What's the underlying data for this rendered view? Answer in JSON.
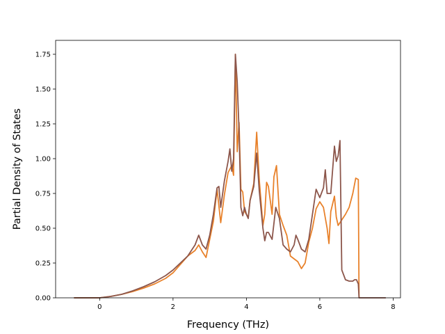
{
  "chart_data": {
    "type": "line",
    "title": "",
    "xlabel": "Frequency (THz)",
    "ylabel": "Partial Density of States",
    "xlim": [
      -1.2,
      8.2
    ],
    "ylim": [
      0,
      1.85
    ],
    "xticks": [
      0,
      2,
      4,
      6,
      8
    ],
    "yticks": [
      0.0,
      0.25,
      0.5,
      0.75,
      1.0,
      1.25,
      1.5,
      1.75
    ],
    "ytick_labels": [
      "0.00",
      "0.25",
      "0.50",
      "0.75",
      "1.00",
      "1.25",
      "1.50",
      "1.75"
    ],
    "grid": false,
    "legend": "none",
    "series": [
      {
        "color": "#e8812a",
        "points": [
          [
            -0.7,
            0
          ],
          [
            0,
            0
          ],
          [
            0.3,
            0.01
          ],
          [
            0.6,
            0.025
          ],
          [
            0.9,
            0.045
          ],
          [
            1.2,
            0.07
          ],
          [
            1.5,
            0.1
          ],
          [
            1.8,
            0.14
          ],
          [
            2.0,
            0.18
          ],
          [
            2.2,
            0.24
          ],
          [
            2.4,
            0.3
          ],
          [
            2.6,
            0.34
          ],
          [
            2.7,
            0.38
          ],
          [
            2.8,
            0.33
          ],
          [
            2.9,
            0.29
          ],
          [
            3.0,
            0.42
          ],
          [
            3.1,
            0.55
          ],
          [
            3.2,
            0.78
          ],
          [
            3.3,
            0.54
          ],
          [
            3.4,
            0.74
          ],
          [
            3.5,
            0.9
          ],
          [
            3.6,
            0.95
          ],
          [
            3.65,
            0.88
          ],
          [
            3.7,
            1.75
          ],
          [
            3.75,
            1.05
          ],
          [
            3.8,
            1.26
          ],
          [
            3.85,
            0.78
          ],
          [
            3.9,
            0.76
          ],
          [
            3.95,
            0.62
          ],
          [
            4.0,
            0.6
          ],
          [
            4.05,
            0.58
          ],
          [
            4.1,
            0.7
          ],
          [
            4.2,
            0.82
          ],
          [
            4.28,
            1.19
          ],
          [
            4.35,
            0.85
          ],
          [
            4.45,
            0.52
          ],
          [
            4.5,
            0.6
          ],
          [
            4.55,
            0.83
          ],
          [
            4.6,
            0.8
          ],
          [
            4.7,
            0.6
          ],
          [
            4.75,
            0.87
          ],
          [
            4.82,
            0.95
          ],
          [
            4.9,
            0.6
          ],
          [
            5.0,
            0.52
          ],
          [
            5.1,
            0.45
          ],
          [
            5.2,
            0.3
          ],
          [
            5.3,
            0.28
          ],
          [
            5.4,
            0.26
          ],
          [
            5.5,
            0.21
          ],
          [
            5.6,
            0.25
          ],
          [
            5.7,
            0.4
          ],
          [
            5.8,
            0.5
          ],
          [
            5.9,
            0.64
          ],
          [
            6.0,
            0.69
          ],
          [
            6.1,
            0.65
          ],
          [
            6.2,
            0.5
          ],
          [
            6.25,
            0.39
          ],
          [
            6.3,
            0.62
          ],
          [
            6.4,
            0.73
          ],
          [
            6.45,
            0.58
          ],
          [
            6.5,
            0.52
          ],
          [
            6.6,
            0.56
          ],
          [
            6.7,
            0.6
          ],
          [
            6.8,
            0.65
          ],
          [
            6.9,
            0.75
          ],
          [
            6.98,
            0.86
          ],
          [
            7.05,
            0.85
          ],
          [
            7.07,
            0
          ]
        ]
      },
      {
        "color": "#8c564b",
        "points": [
          [
            -0.7,
            0
          ],
          [
            0,
            0
          ],
          [
            0.3,
            0.01
          ],
          [
            0.6,
            0.025
          ],
          [
            0.9,
            0.05
          ],
          [
            1.2,
            0.08
          ],
          [
            1.5,
            0.115
          ],
          [
            1.8,
            0.16
          ],
          [
            2.0,
            0.2
          ],
          [
            2.2,
            0.25
          ],
          [
            2.4,
            0.3
          ],
          [
            2.6,
            0.38
          ],
          [
            2.7,
            0.45
          ],
          [
            2.8,
            0.38
          ],
          [
            2.9,
            0.35
          ],
          [
            3.0,
            0.45
          ],
          [
            3.1,
            0.6
          ],
          [
            3.2,
            0.79
          ],
          [
            3.25,
            0.8
          ],
          [
            3.3,
            0.65
          ],
          [
            3.4,
            0.84
          ],
          [
            3.5,
            0.98
          ],
          [
            3.55,
            1.07
          ],
          [
            3.6,
            0.91
          ],
          [
            3.65,
            1.0
          ],
          [
            3.7,
            1.75
          ],
          [
            3.75,
            1.55
          ],
          [
            3.8,
            1.2
          ],
          [
            3.85,
            0.65
          ],
          [
            3.9,
            0.59
          ],
          [
            3.95,
            0.65
          ],
          [
            4.0,
            0.6
          ],
          [
            4.05,
            0.57
          ],
          [
            4.1,
            0.7
          ],
          [
            4.2,
            0.8
          ],
          [
            4.28,
            1.04
          ],
          [
            4.35,
            0.77
          ],
          [
            4.45,
            0.5
          ],
          [
            4.5,
            0.41
          ],
          [
            4.55,
            0.47
          ],
          [
            4.6,
            0.47
          ],
          [
            4.7,
            0.42
          ],
          [
            4.8,
            0.65
          ],
          [
            4.9,
            0.57
          ],
          [
            5.0,
            0.38
          ],
          [
            5.1,
            0.35
          ],
          [
            5.2,
            0.33
          ],
          [
            5.3,
            0.38
          ],
          [
            5.35,
            0.45
          ],
          [
            5.4,
            0.42
          ],
          [
            5.5,
            0.35
          ],
          [
            5.6,
            0.33
          ],
          [
            5.7,
            0.42
          ],
          [
            5.8,
            0.6
          ],
          [
            5.9,
            0.78
          ],
          [
            6.0,
            0.72
          ],
          [
            6.1,
            0.79
          ],
          [
            6.15,
            0.92
          ],
          [
            6.2,
            0.75
          ],
          [
            6.3,
            0.75
          ],
          [
            6.4,
            1.09
          ],
          [
            6.45,
            0.98
          ],
          [
            6.5,
            1.02
          ],
          [
            6.55,
            1.13
          ],
          [
            6.6,
            0.2
          ],
          [
            6.7,
            0.13
          ],
          [
            6.8,
            0.12
          ],
          [
            6.9,
            0.12
          ],
          [
            6.95,
            0.13
          ],
          [
            7.0,
            0.13
          ],
          [
            7.05,
            0.1
          ],
          [
            7.07,
            0
          ],
          [
            7.8,
            0
          ]
        ]
      }
    ]
  }
}
